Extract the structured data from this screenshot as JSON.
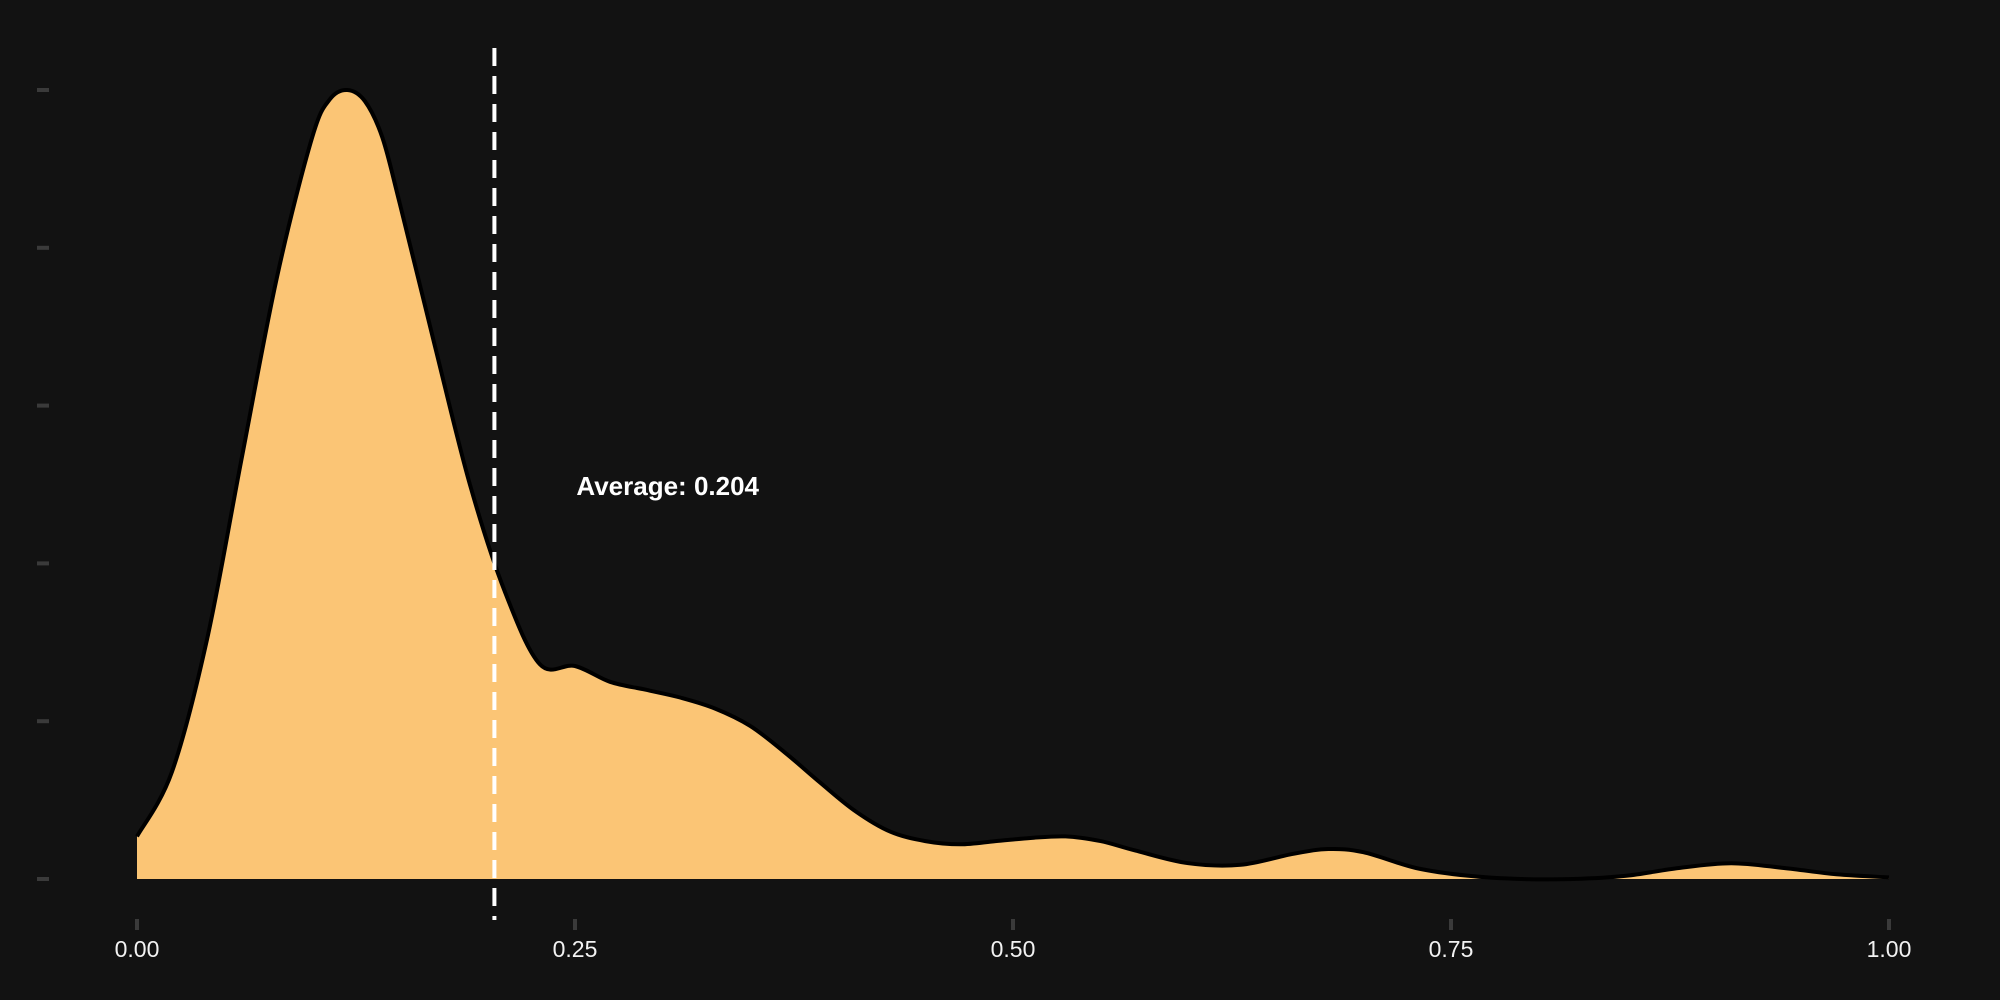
{
  "chart_data": {
    "type": "area",
    "title": "",
    "xlabel": "",
    "ylabel": "",
    "xlim": [
      0,
      1
    ],
    "ylim": [
      0,
      5
    ],
    "x_ticks": [
      "0.00",
      "0.25",
      "0.50",
      "0.75",
      "1.00"
    ],
    "y_ticks": [
      0,
      1,
      2,
      3,
      4,
      5
    ],
    "y_tick_labels_shown": false,
    "grid": false,
    "legend": "none",
    "series": [
      {
        "x": [
          0.0,
          0.02,
          0.04,
          0.06,
          0.08,
          0.1,
          0.11,
          0.12,
          0.13,
          0.14,
          0.15,
          0.17,
          0.19,
          0.21,
          0.23,
          0.25,
          0.27,
          0.29,
          0.31,
          0.33,
          0.35,
          0.37,
          0.39,
          0.41,
          0.43,
          0.45,
          0.47,
          0.49,
          0.51,
          0.53,
          0.55,
          0.57,
          0.6,
          0.63,
          0.66,
          0.68,
          0.7,
          0.73,
          0.76,
          0.79,
          0.82,
          0.85,
          0.88,
          0.91,
          0.94,
          0.97,
          1.0
        ],
        "y": [
          0.27,
          0.68,
          1.52,
          2.68,
          3.82,
          4.7,
          4.94,
          5.0,
          4.93,
          4.7,
          4.28,
          3.38,
          2.5,
          1.82,
          1.36,
          1.35,
          1.25,
          1.2,
          1.15,
          1.08,
          0.97,
          0.8,
          0.61,
          0.43,
          0.3,
          0.24,
          0.22,
          0.24,
          0.26,
          0.27,
          0.24,
          0.18,
          0.1,
          0.09,
          0.16,
          0.19,
          0.17,
          0.07,
          0.02,
          0.0,
          0.0,
          0.02,
          0.07,
          0.1,
          0.07,
          0.03,
          0.01
        ]
      }
    ],
    "colors": {
      "background": "#121212",
      "fill": "#fbc575",
      "outline": "#000000",
      "mean_line": "#ffffff",
      "tick": "#3a3a3a",
      "text": "#f2f2f2"
    },
    "mean_line": {
      "x": 0.204,
      "label": "Average: 0.204"
    }
  }
}
